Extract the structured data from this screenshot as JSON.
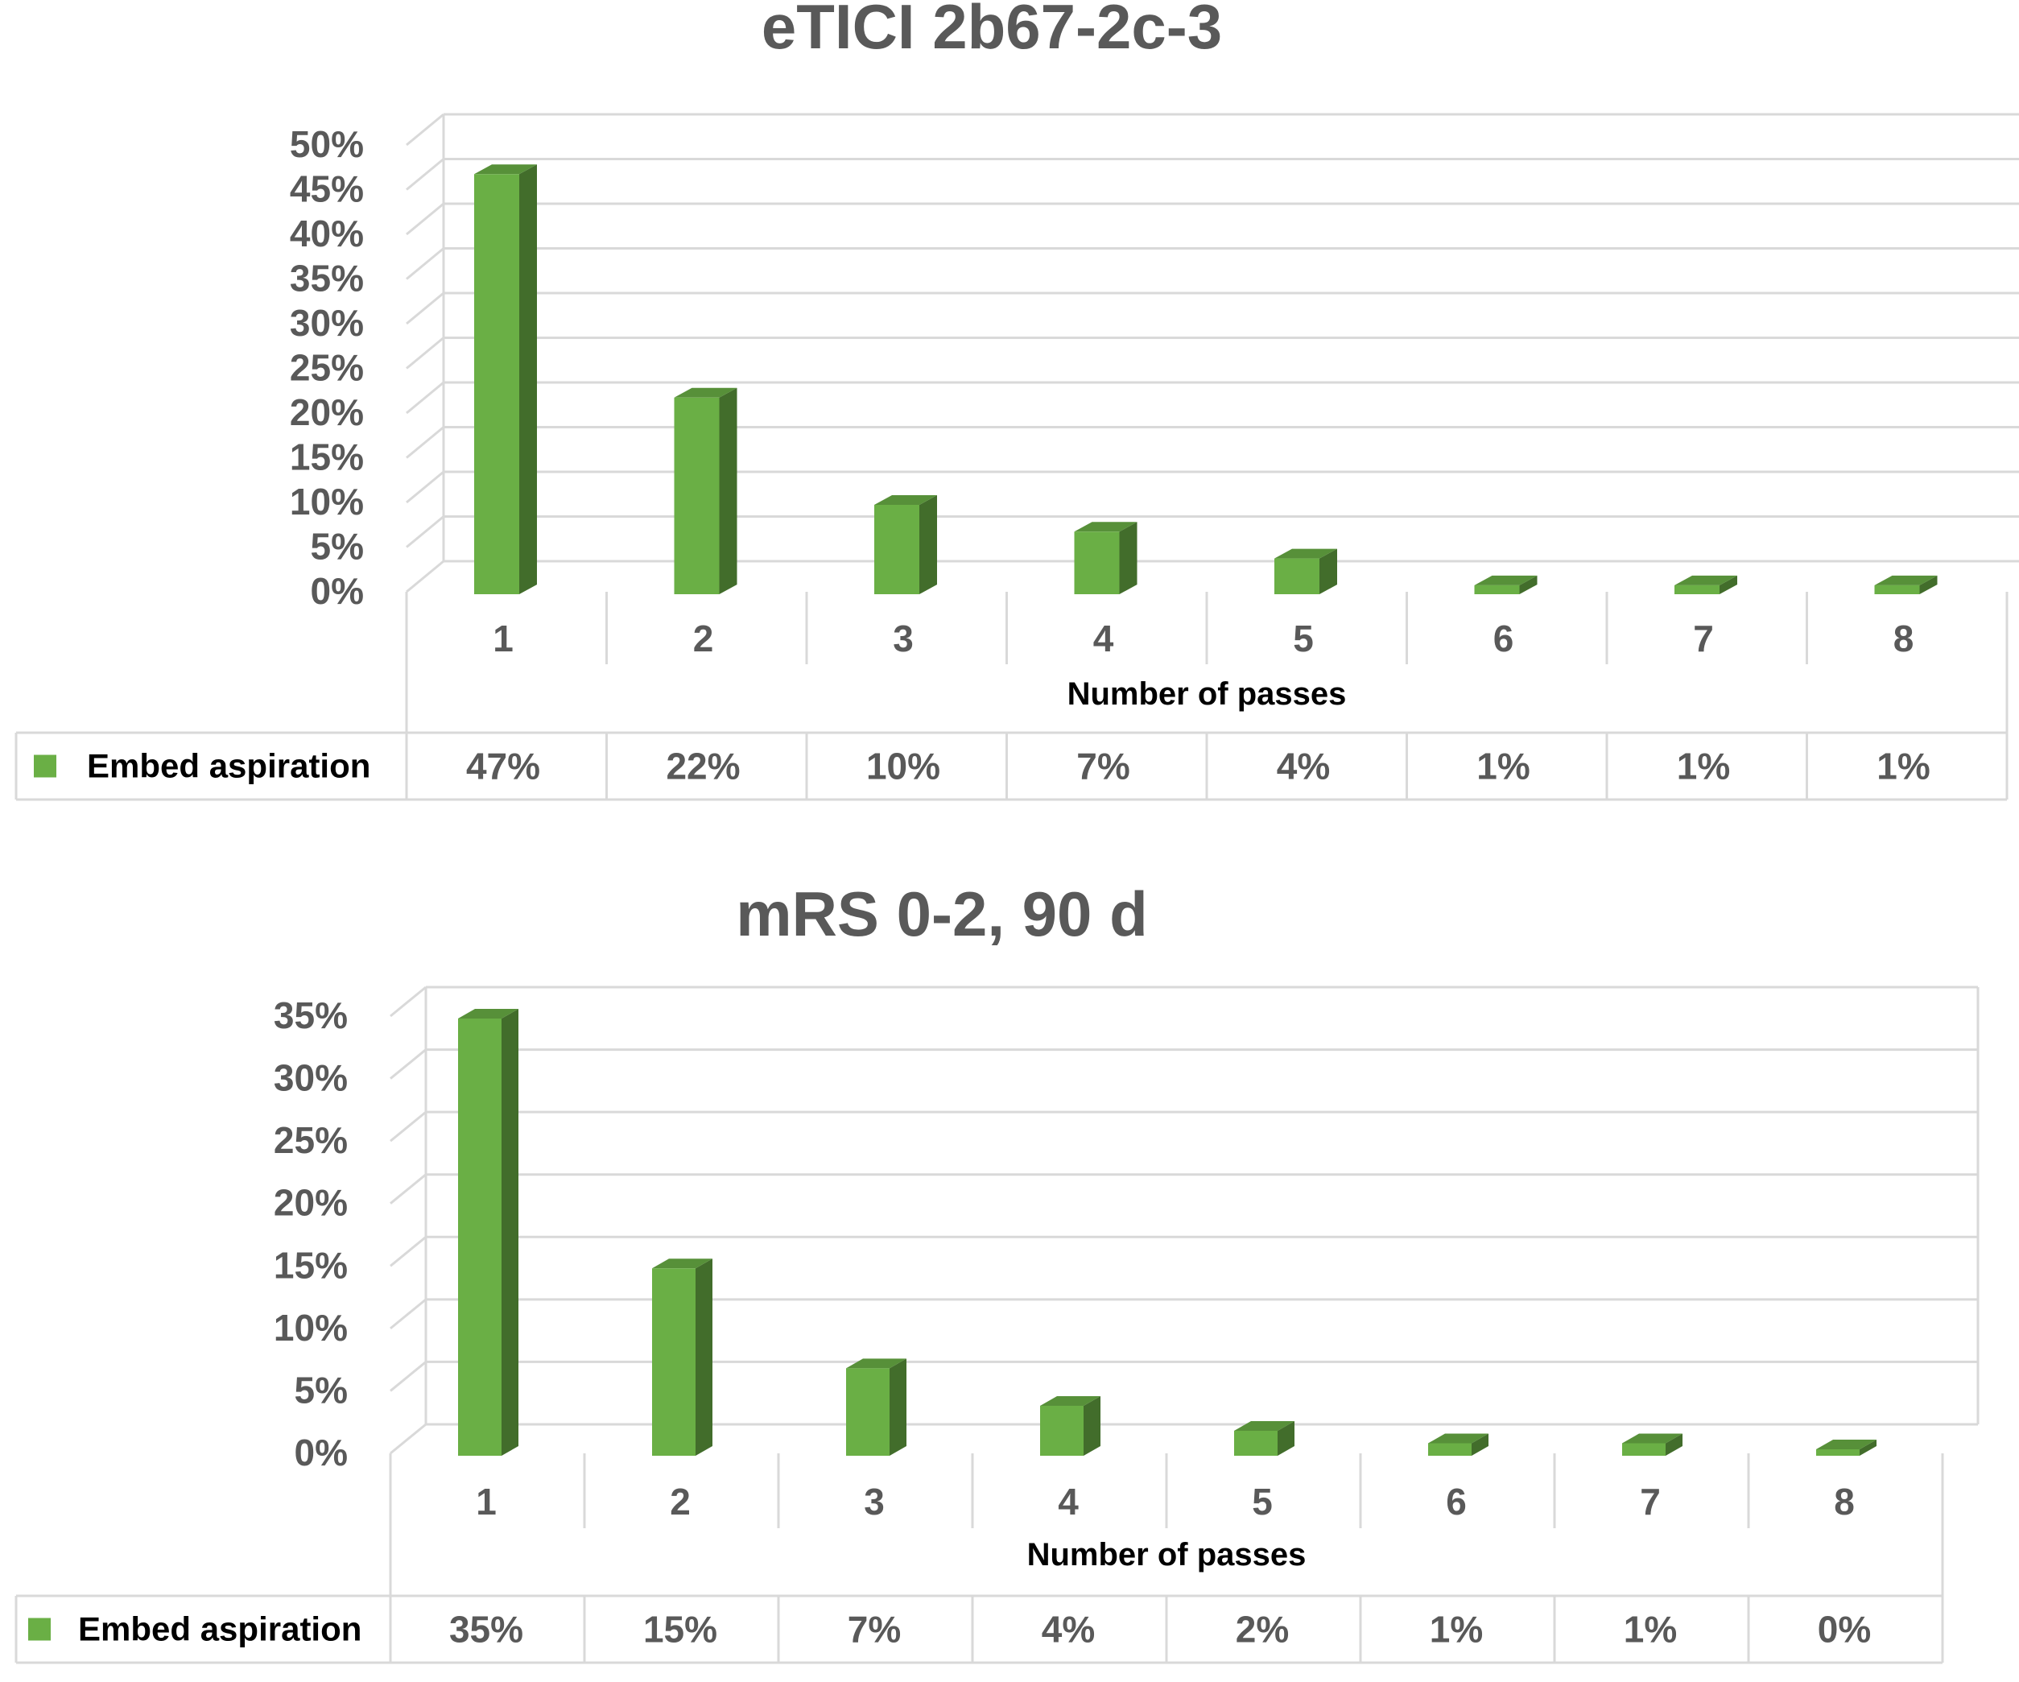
{
  "chart_data": [
    {
      "type": "bar",
      "title": "eTICI 2b67-2c-3",
      "xlabel": "Number of passes",
      "ylabel": "",
      "categories": [
        "1",
        "2",
        "3",
        "4",
        "5",
        "6",
        "7",
        "8"
      ],
      "series": [
        {
          "name": "Embed aspiration",
          "values": [
            47,
            22,
            10,
            7,
            4,
            1,
            1,
            1
          ],
          "labels": [
            "47%",
            "22%",
            "10%",
            "7%",
            "4%",
            "1%",
            "1%",
            "1%"
          ]
        }
      ],
      "ylim": [
        0,
        50
      ],
      "yticks": [
        "0%",
        "5%",
        "10%",
        "15%",
        "20%",
        "25%",
        "30%",
        "35%",
        "40%",
        "45%",
        "50%"
      ],
      "grid": true,
      "legend": "data-table",
      "color": "#6aaf45"
    },
    {
      "type": "bar",
      "title": "mRS 0-2, 90 d",
      "xlabel": "Number of passes",
      "ylabel": "",
      "categories": [
        "1",
        "2",
        "3",
        "4",
        "5",
        "6",
        "7",
        "8"
      ],
      "series": [
        {
          "name": "Embed aspiration",
          "values": [
            35,
            15,
            7,
            4,
            2,
            1,
            1,
            0
          ],
          "labels": [
            "35%",
            "15%",
            "7%",
            "4%",
            "2%",
            "1%",
            "1%",
            "0%"
          ]
        }
      ],
      "ylim": [
        0,
        35
      ],
      "yticks": [
        "0%",
        "5%",
        "10%",
        "15%",
        "20%",
        "25%",
        "30%",
        "35%"
      ],
      "grid": true,
      "legend": "data-table",
      "color": "#6aaf45"
    }
  ]
}
